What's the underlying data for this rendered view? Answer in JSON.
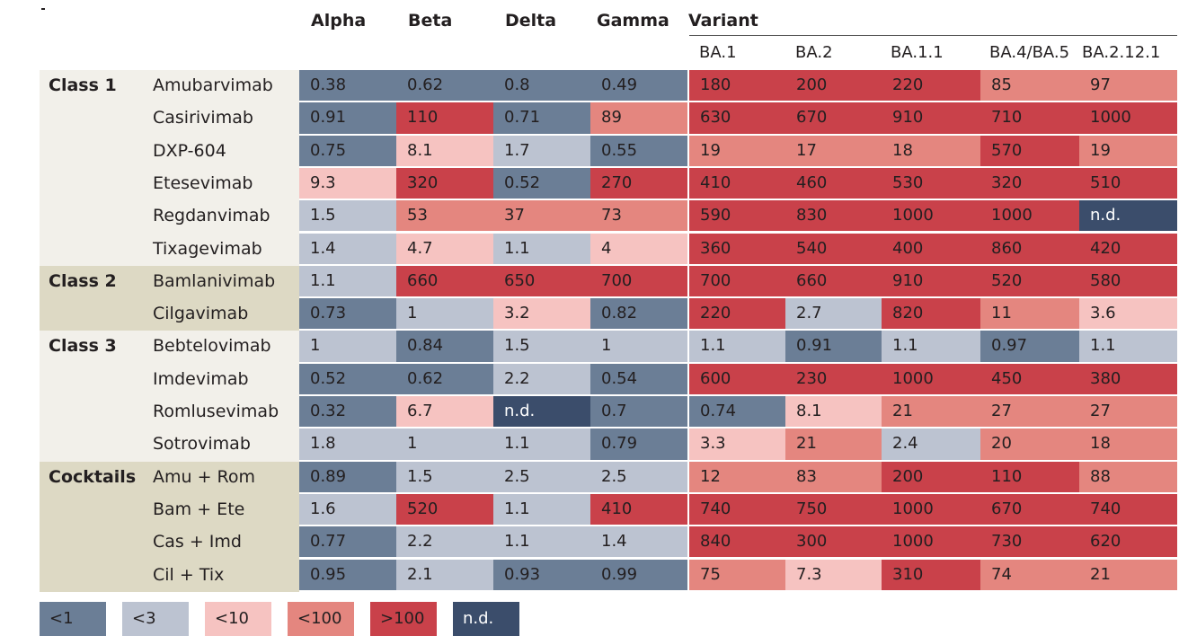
{
  "chart_data": {
    "type": "table",
    "title": "",
    "header_variant": "Variant",
    "columns": [
      {
        "key": "Alpha",
        "group": "named"
      },
      {
        "key": "Beta",
        "group": "named"
      },
      {
        "key": "Delta",
        "group": "named"
      },
      {
        "key": "Gamma",
        "group": "named"
      },
      {
        "key": "BA.1",
        "group": "omicron"
      },
      {
        "key": "BA.2",
        "group": "omicron"
      },
      {
        "key": "BA.1.1",
        "group": "omicron"
      },
      {
        "key": "BA.4/BA.5",
        "group": "omicron"
      },
      {
        "key": "BA.2.12.1",
        "group": "omicron"
      }
    ],
    "classes": [
      {
        "name": "Class 1",
        "color": "#f2f0ea",
        "rows": [
          {
            "name": "Amubarvimab",
            "values": [
              "0.38",
              "0.62",
              "0.8",
              "0.49",
              "180",
              "200",
              "220",
              "85",
              "97"
            ]
          },
          {
            "name": "Casirivimab",
            "values": [
              "0.91",
              "110",
              "0.71",
              "89",
              "630",
              "670",
              "910",
              "710",
              "1000"
            ]
          },
          {
            "name": "DXP-604",
            "values": [
              "0.75",
              "8.1",
              "1.7",
              "0.55",
              "19",
              "17",
              "18",
              "570",
              "19"
            ]
          },
          {
            "name": "Etesevimab",
            "values": [
              "9.3",
              "320",
              "0.52",
              "270",
              "410",
              "460",
              "530",
              "320",
              "510"
            ]
          },
          {
            "name": "Regdanvimab",
            "values": [
              "1.5",
              "53",
              "37",
              "73",
              "590",
              "830",
              "1000",
              "1000",
              "n.d."
            ]
          },
          {
            "name": "Tixagevimab",
            "values": [
              "1.4",
              "4.7",
              "1.1",
              "4",
              "360",
              "540",
              "400",
              "860",
              "420"
            ]
          }
        ]
      },
      {
        "name": "Class 2",
        "color": "#ddd9c4",
        "rows": [
          {
            "name": "Bamlanivimab",
            "values": [
              "1.1",
              "660",
              "650",
              "700",
              "700",
              "660",
              "910",
              "520",
              "580"
            ]
          },
          {
            "name": "Cilgavimab",
            "values": [
              "0.73",
              "1",
              "3.2",
              "0.82",
              "220",
              "2.7",
              "820",
              "11",
              "3.6"
            ]
          }
        ]
      },
      {
        "name": "Class 3",
        "color": "#f2f0ea",
        "rows": [
          {
            "name": "Bebtelovimab",
            "values": [
              "1",
              "0.84",
              "1.5",
              "1",
              "1.1",
              "0.91",
              "1.1",
              "0.97",
              "1.1"
            ]
          },
          {
            "name": "Imdevimab",
            "values": [
              "0.52",
              "0.62",
              "2.2",
              "0.54",
              "600",
              "230",
              "1000",
              "450",
              "380"
            ]
          },
          {
            "name": "Romlusevimab",
            "values": [
              "0.32",
              "6.7",
              "n.d.",
              "0.7",
              "0.74",
              "8.1",
              "21",
              "27",
              "27"
            ]
          },
          {
            "name": "Sotrovimab",
            "values": [
              "1.8",
              "1",
              "1.1",
              "0.79",
              "3.3",
              "21",
              "2.4",
              "20",
              "18"
            ]
          }
        ]
      },
      {
        "name": "Cocktails",
        "color": "#ddd9c4",
        "rows": [
          {
            "name": "Amu + Rom",
            "values": [
              "0.89",
              "1.5",
              "2.5",
              "2.5",
              "12",
              "83",
              "200",
              "110",
              "88"
            ]
          },
          {
            "name": "Bam + Ete",
            "values": [
              "1.6",
              "520",
              "1.1",
              "410",
              "740",
              "750",
              "1000",
              "670",
              "740"
            ]
          },
          {
            "name": "Cas + Imd",
            "values": [
              "0.77",
              "2.2",
              "1.1",
              "1.4",
              "840",
              "300",
              "1000",
              "730",
              "620"
            ]
          },
          {
            "name": "Cil + Tix",
            "values": [
              "0.95",
              "2.1",
              "0.93",
              "0.99",
              "75",
              "7.3",
              "310",
              "74",
              "21"
            ]
          }
        ]
      }
    ],
    "legend": [
      {
        "label": "<1",
        "max": 1,
        "color": "#6b7e96"
      },
      {
        "label": "<3",
        "max": 3,
        "color": "#bcc3d1"
      },
      {
        "label": "<10",
        "max": 10,
        "color": "#f6c3c1"
      },
      {
        "label": "<100",
        "max": 100,
        "color": "#e4867f"
      },
      {
        "label": ">100",
        "max": null,
        "color": "#c9414a"
      },
      {
        "label": "n.d.",
        "max": null,
        "color": "#3b4d6b"
      }
    ]
  }
}
